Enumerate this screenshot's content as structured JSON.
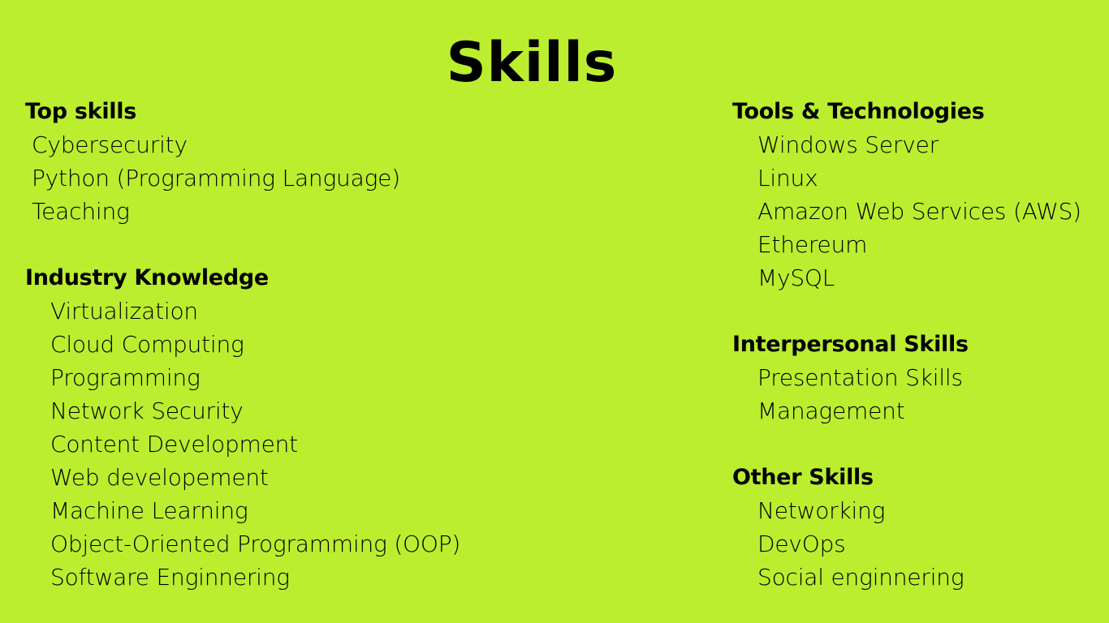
{
  "page": {
    "background": "#bbee2f",
    "text_color": "#000000"
  },
  "title": "Skills",
  "left": {
    "top_skills": {
      "heading": "Top skills",
      "items": [
        "Cybersecurity",
        "Python (Programming Language)",
        "Teaching"
      ]
    },
    "industry_knowledge": {
      "heading": "Industry Knowledge",
      "items": [
        "Virtualization",
        "Cloud Computing",
        "Programming",
        "Network Security",
        "Content Development",
        "Web developement",
        "Machine Learning",
        "Object-Oriented Programming (OOP)",
        "Software Enginnering"
      ]
    }
  },
  "right": {
    "tools": {
      "heading": "Tools & Technologies",
      "items": [
        "Windows Server",
        "Linux",
        "Amazon Web Services (AWS)",
        "Ethereum",
        "MySQL"
      ]
    },
    "interpersonal": {
      "heading": "Interpersonal Skills",
      "items": [
        "Presentation Skills",
        "Management"
      ]
    },
    "other": {
      "heading": "Other Skills",
      "items": [
        "Networking",
        "DevOps",
        "Social enginnering"
      ]
    }
  }
}
